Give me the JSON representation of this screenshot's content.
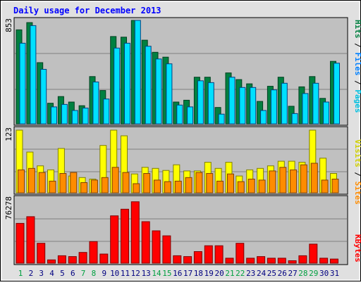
{
  "chart_data": [
    {
      "type": "bar",
      "title": "Daily usage for December 2013",
      "ylabel_max": "853",
      "legend": [
        "Pages",
        "Files",
        "Hits"
      ],
      "legend_separator": " / ",
      "categories": [
        "1",
        "2",
        "3",
        "4",
        "5",
        "6",
        "7",
        "8",
        "9",
        "10",
        "11",
        "12",
        "13",
        "14",
        "15",
        "16",
        "17",
        "18",
        "19",
        "20",
        "21",
        "22",
        "23",
        "24",
        "25",
        "26",
        "27",
        "28",
        "29",
        "30",
        "31"
      ],
      "weekend_days": [
        "1",
        "7",
        "8",
        "14",
        "15",
        "21",
        "22",
        "28",
        "29"
      ],
      "ylim": [
        0,
        853
      ],
      "series": [
        {
          "name": "Hits",
          "color": "#008040",
          "values": [
            775,
            835,
            505,
            170,
            225,
            180,
            150,
            390,
            275,
            720,
            715,
            853,
            690,
            590,
            550,
            180,
            195,
            385,
            385,
            135,
            420,
            365,
            330,
            185,
            310,
            385,
            145,
            305,
            390,
            210,
            515
          ]
        },
        {
          "name": "Files",
          "color": "#00E0FF",
          "values": [
            665,
            810,
            450,
            140,
            160,
            110,
            130,
            345,
            205,
            625,
            665,
            853,
            640,
            535,
            495,
            155,
            140,
            355,
            340,
            80,
            385,
            300,
            300,
            110,
            280,
            335,
            85,
            250,
            335,
            180,
            500
          ]
        }
      ]
    },
    {
      "type": "bar",
      "ylabel_max": "123",
      "legend": [
        "Sites",
        "Visits"
      ],
      "legend_separator": " / ",
      "ylim": [
        0,
        123
      ],
      "series": [
        {
          "name": "Visits",
          "color": "#FFFF00",
          "values": [
            123,
            80,
            53,
            45,
            87,
            33,
            30,
            27,
            93,
            123,
            112,
            37,
            50,
            48,
            44,
            55,
            43,
            43,
            60,
            48,
            60,
            33,
            45,
            48,
            53,
            62,
            62,
            60,
            123,
            68,
            38
          ]
        },
        {
          "name": "Sites",
          "color": "#FF8C00",
          "values": [
            45,
            48,
            40,
            23,
            38,
            40,
            20,
            25,
            30,
            50,
            40,
            18,
            38,
            25,
            22,
            23,
            30,
            40,
            38,
            23,
            37,
            22,
            27,
            25,
            43,
            50,
            45,
            55,
            58,
            25,
            27
          ]
        }
      ]
    },
    {
      "type": "bar",
      "ylabel_max": "76278",
      "legend": [
        "KBytes"
      ],
      "ylim": [
        0,
        76278
      ],
      "series": [
        {
          "name": "KBytes",
          "color": "#FF0000",
          "values": [
            48000,
            56000,
            24000,
            4000,
            9000,
            8000,
            13000,
            26000,
            11000,
            57000,
            65000,
            74000,
            50000,
            39000,
            33000,
            9000,
            8000,
            14000,
            21000,
            21000,
            6000,
            24000,
            6000,
            8000,
            6000,
            6000,
            3000,
            9000,
            23000,
            6000,
            5000
          ]
        }
      ]
    }
  ],
  "colors": {
    "plot_bg": "#C0C0C0",
    "frame_bg": "#E0E0E0",
    "title": "#0000FF",
    "weekday_label": "#000080",
    "weekend_label": "#00A040",
    "gridline": "#808080"
  }
}
